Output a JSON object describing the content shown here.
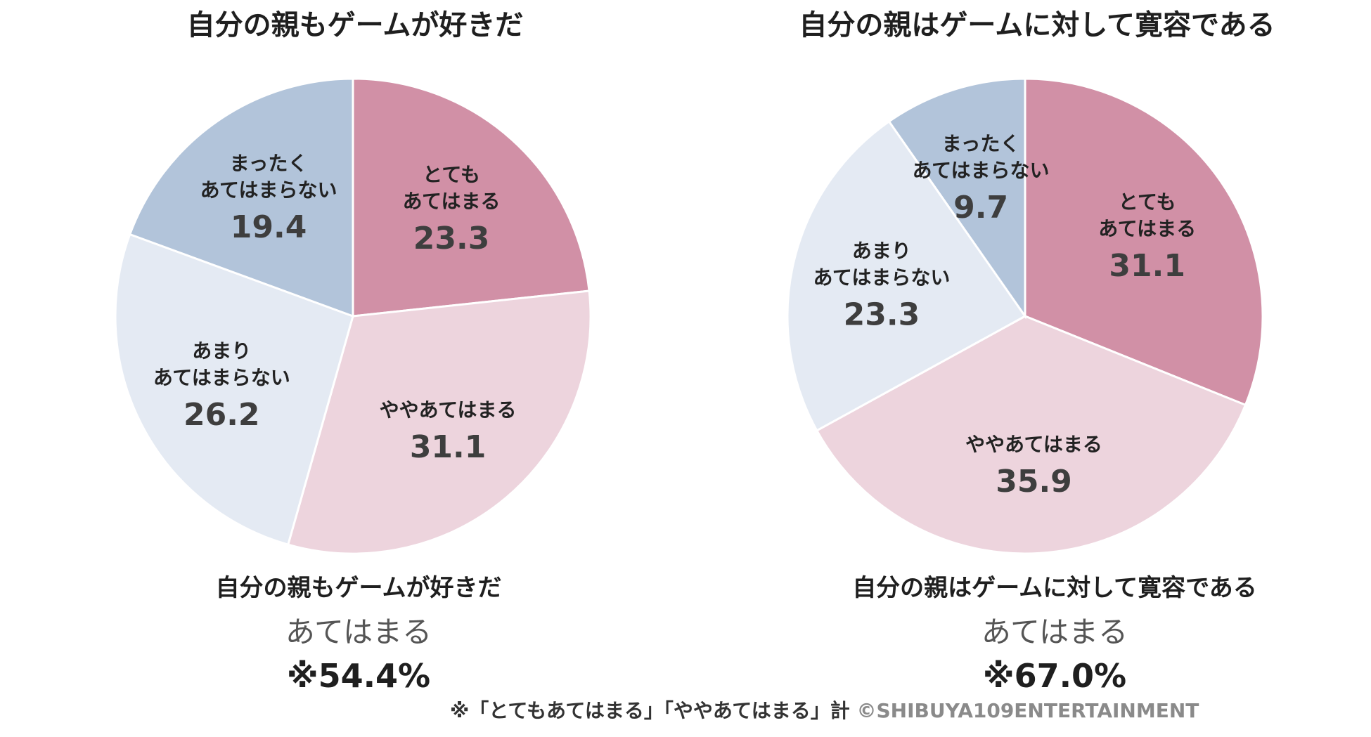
{
  "chart_data": [
    {
      "type": "pie",
      "title": "自分の親もゲームが好きだ",
      "slices": [
        {
          "label_lines": [
            "とても",
            "あてはまる"
          ],
          "value": 23.3,
          "color": "#D190A6"
        },
        {
          "label_lines": [
            "ややあてはまる"
          ],
          "value": 31.1,
          "color": "#EDD4DD"
        },
        {
          "label_lines": [
            "あまり",
            "あてはまらない"
          ],
          "value": 26.2,
          "color": "#E4EAF3"
        },
        {
          "label_lines": [
            "まったく",
            "あてはまらない"
          ],
          "value": 19.4,
          "color": "#B2C4DA"
        }
      ],
      "summary": {
        "title": "自分の親もゲームが好きだ",
        "sub": "あてはまる",
        "value": "※54.4%"
      }
    },
    {
      "type": "pie",
      "title": "自分の親はゲームに対して寛容である",
      "slices": [
        {
          "label_lines": [
            "とても",
            "あてはまる"
          ],
          "value": 31.1,
          "color": "#D190A6"
        },
        {
          "label_lines": [
            "ややあてはまる"
          ],
          "value": 35.9,
          "color": "#EDD4DD"
        },
        {
          "label_lines": [
            "あまり",
            "あてはまらない"
          ],
          "value": 23.3,
          "color": "#E4EAF3"
        },
        {
          "label_lines": [
            "まったく",
            "あてはまらない"
          ],
          "value": 9.7,
          "color": "#B2C4DA"
        }
      ],
      "summary": {
        "title": "自分の親はゲームに対して寛容である",
        "sub": "あてはまる",
        "value": "※67.0%"
      }
    }
  ],
  "footnote": {
    "text": "※「とてもあてはまる」「ややあてはまる」計",
    "copyright": "©SHIBUYA109ENTERTAINMENT"
  }
}
